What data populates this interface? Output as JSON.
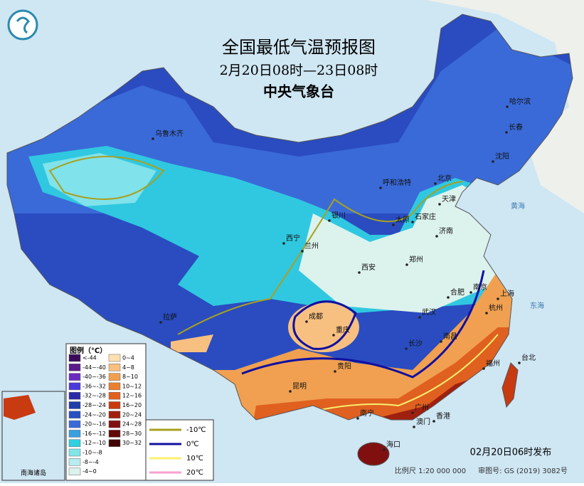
{
  "header": {
    "title": "全国最低气温预报图",
    "subtitle": "2月20日08时—23日08时",
    "issuer": "中央气象台"
  },
  "cities": [
    "乌鲁木齐",
    "哈尔滨",
    "长春",
    "沈阳",
    "北京",
    "天津",
    "呼和浩特",
    "石家庄",
    "太原",
    "济南",
    "银川",
    "西宁",
    "兰州",
    "西安",
    "郑州",
    "合肥",
    "南京",
    "上海",
    "杭州",
    "武汉",
    "成都",
    "重庆",
    "长沙",
    "南昌",
    "拉萨",
    "贵阳",
    "昆明",
    "福州",
    "台北",
    "南宁",
    "广州",
    "澳门",
    "香港",
    "海口"
  ],
  "seas": [
    "黄海",
    "东海",
    "南海"
  ],
  "legend": {
    "title": "图例（℃）",
    "cold": [
      {
        "label": "<-44",
        "color": "#3a0a5a"
      },
      {
        "label": "-44~-40",
        "color": "#5a1a8a"
      },
      {
        "label": "-40~-36",
        "color": "#6a2ac0"
      },
      {
        "label": "-36~-32",
        "color": "#4a3adc"
      },
      {
        "label": "-32~-28",
        "color": "#2a2aa8"
      },
      {
        "label": "-28~-24",
        "color": "#1e3ea8"
      },
      {
        "label": "-24~-20",
        "color": "#2850c0"
      },
      {
        "label": "-20~-16",
        "color": "#3a6ad8"
      },
      {
        "label": "-16~-12",
        "color": "#3aa0e0"
      },
      {
        "label": "-12~-10",
        "color": "#30d0e0"
      },
      {
        "label": "-10~-8",
        "color": "#80e6ea"
      },
      {
        "label": "-8~-4",
        "color": "#b8ecf0"
      },
      {
        "label": "-4~0",
        "color": "#dcf2ec"
      }
    ],
    "warm": [
      {
        "label": "0~4",
        "color": "#fde0b0"
      },
      {
        "label": "4~8",
        "color": "#f8c080"
      },
      {
        "label": "8~10",
        "color": "#f0a050"
      },
      {
        "label": "10~12",
        "color": "#e88030"
      },
      {
        "label": "12~16",
        "color": "#e06020"
      },
      {
        "label": "16~20",
        "color": "#c83a10"
      },
      {
        "label": "20~24",
        "color": "#a02010"
      },
      {
        "label": "24~28",
        "color": "#801010"
      },
      {
        "label": "28~30",
        "color": "#600808"
      },
      {
        "label": "30~32",
        "color": "#400404"
      }
    ],
    "isotherms": [
      {
        "label": "-10℃",
        "color": "#a8a020"
      },
      {
        "label": "0℃",
        "color": "#1010a0"
      },
      {
        "label": "10℃",
        "color": "#f8f070"
      },
      {
        "label": "20℃",
        "color": "#f8a0d0"
      }
    ]
  },
  "inset": "南海诸岛",
  "footer": {
    "issued": "02月20日06时发布",
    "scale": "比例尺 1:20 000 000",
    "review": "审图号: GS (2019) 3082号"
  }
}
